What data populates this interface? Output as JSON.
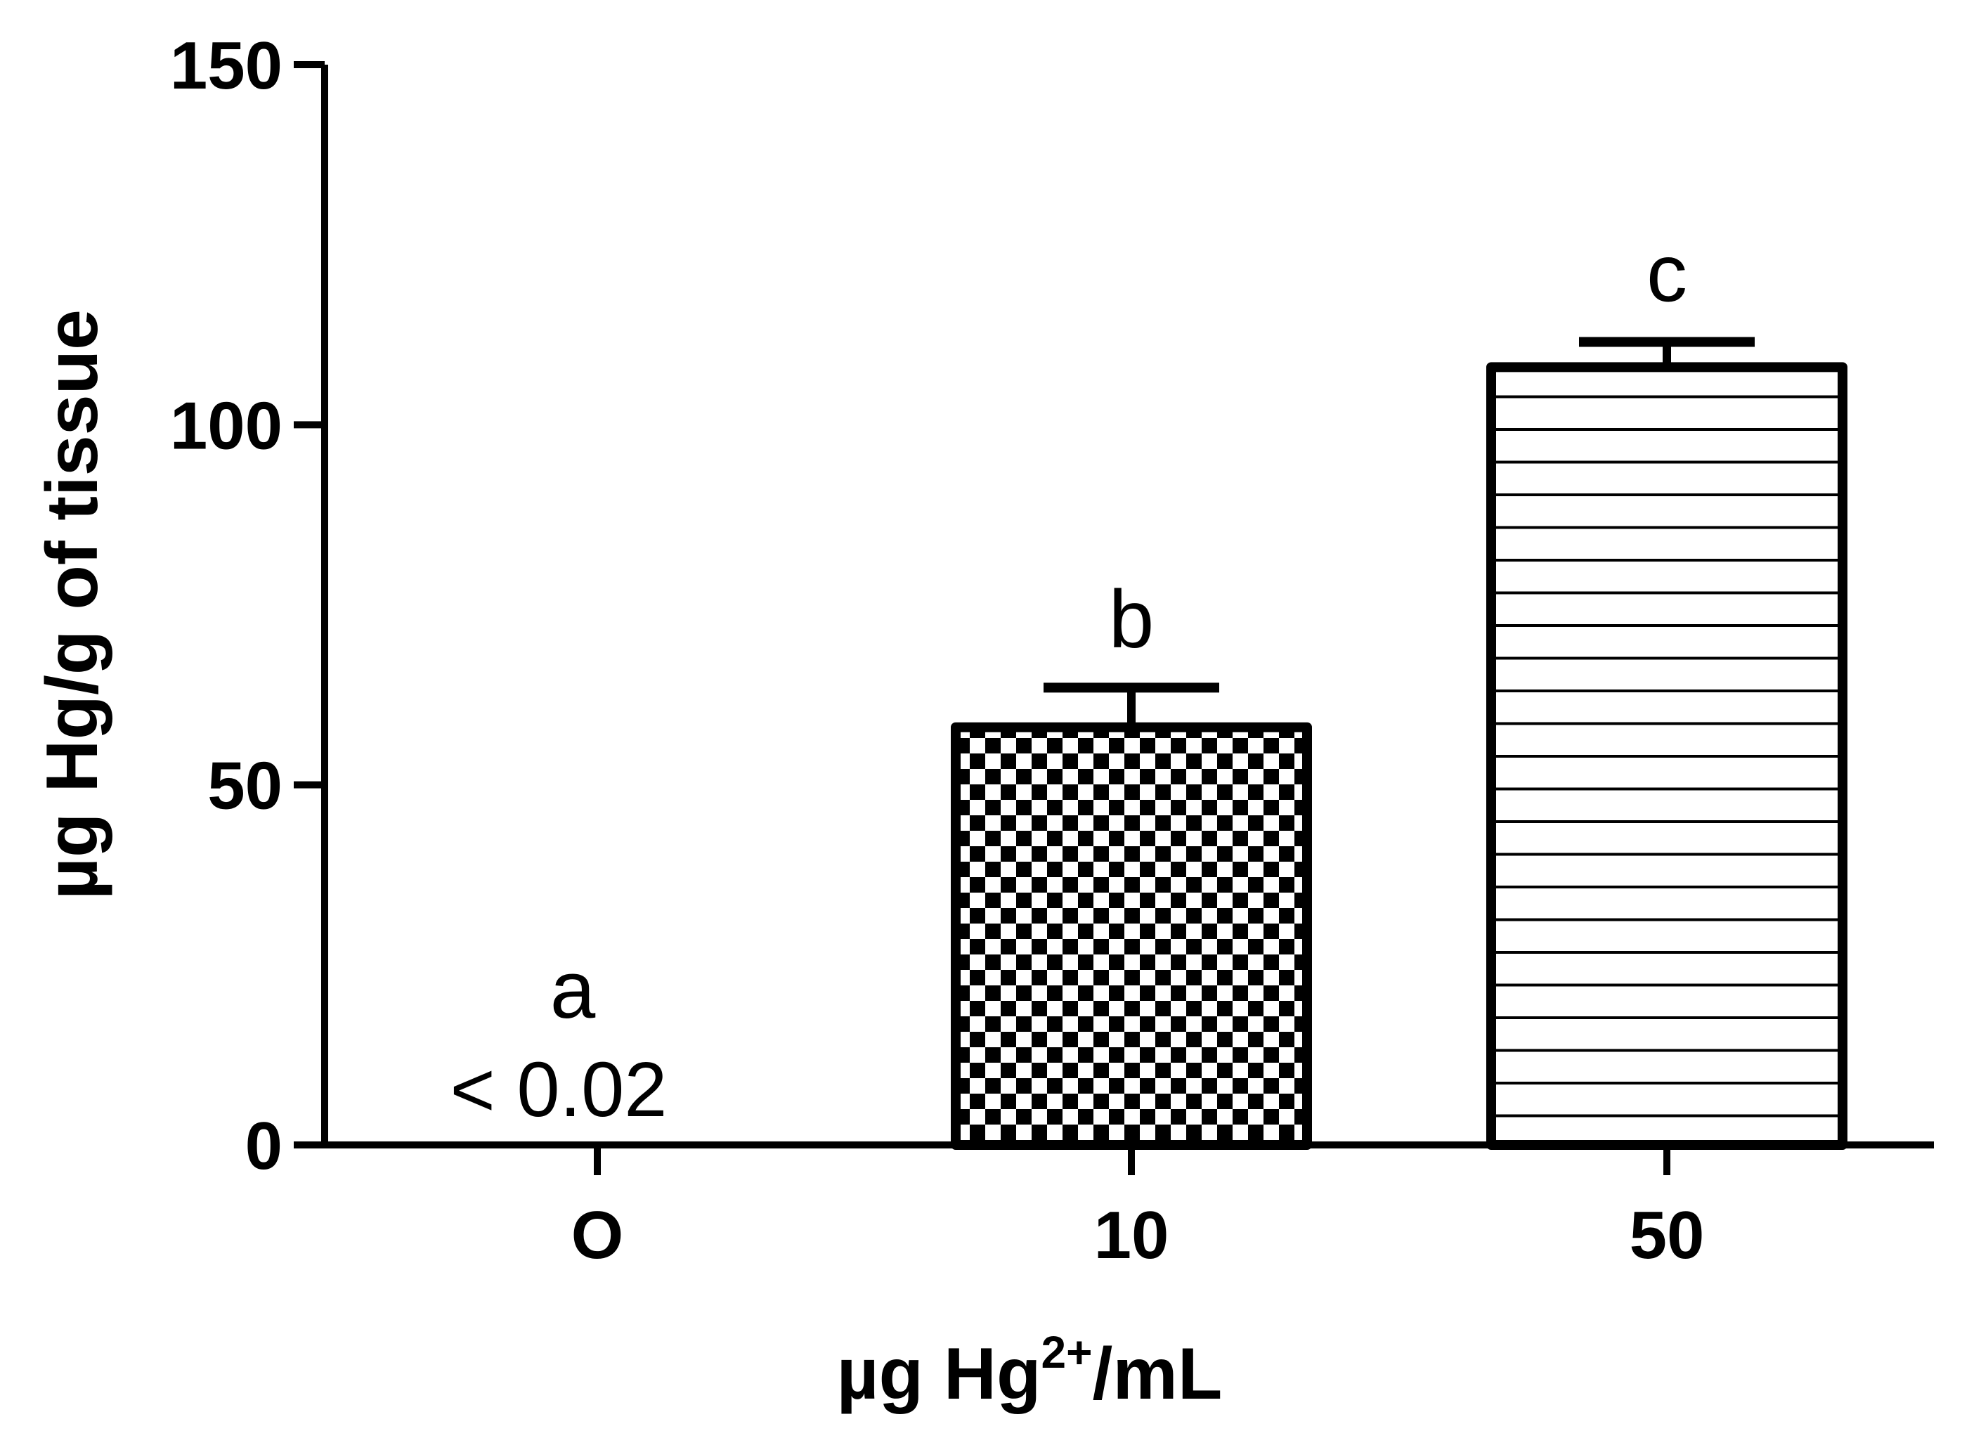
{
  "chart_data": {
    "type": "bar",
    "categories": [
      "O",
      "10",
      "50"
    ],
    "values": [
      0,
      58,
      108
    ],
    "errors": [
      0,
      5.5,
      3.5
    ],
    "significance_letters": [
      "a",
      "b",
      "c"
    ],
    "annotations": [
      "< 0.02",
      "",
      ""
    ],
    "fill_patterns": [
      "none",
      "checkerboard",
      "horizontal-lines"
    ],
    "xlabel": {
      "main": "µg Hg",
      "superscript": "2+",
      "suffix": "/mL"
    },
    "ylabel": "µg Hg/g of tissue",
    "ylim": [
      0,
      150
    ],
    "yticks": [
      "0",
      "50",
      "100",
      "150"
    ],
    "ytick_values": [
      0,
      50,
      100,
      150
    ],
    "grid": false,
    "colors": {
      "stroke": "#000000",
      "fill": "#ffffff"
    }
  }
}
